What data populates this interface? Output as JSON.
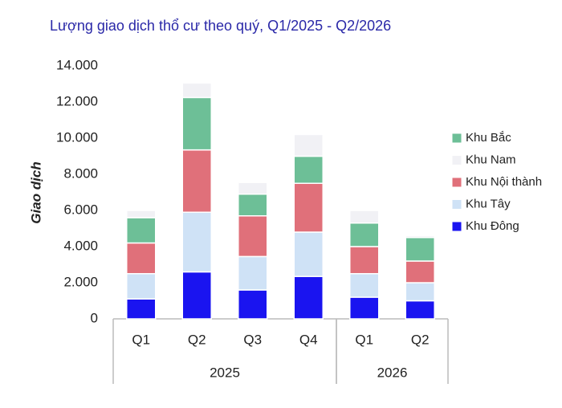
{
  "chart_data": {
    "type": "stacked_bar",
    "title": "Lượng giao dịch thổ cư theo quý, Q1/2025 - Q2/2026",
    "y_label": "Giao dịch",
    "groups": [
      {
        "name": "2025",
        "categories": [
          "Q1",
          "Q2",
          "Q3",
          "Q4"
        ]
      },
      {
        "name": "2026",
        "categories": [
          "Q1",
          "Q2"
        ]
      }
    ],
    "series": [
      {
        "name": "Khu Đông",
        "color": "#1a14f0",
        "values": [
          1100,
          2600,
          1600,
          2350,
          1200,
          1000
        ]
      },
      {
        "name": "Khu Tây",
        "color": "#cfe2f6",
        "values": [
          1400,
          3300,
          1850,
          2450,
          1300,
          1000
        ]
      },
      {
        "name": "Khu Nội thành",
        "color": "#e0707a",
        "values": [
          1700,
          3450,
          2250,
          2700,
          1500,
          1200
        ]
      },
      {
        "name": "Khu Bắc",
        "color": "#6dbf97",
        "values": [
          1400,
          2900,
          1200,
          1500,
          1300,
          1300
        ]
      },
      {
        "name": "Khu Nam",
        "color": "#f1f1f5",
        "values": [
          400,
          800,
          650,
          1200,
          700,
          100
        ]
      }
    ],
    "legend_order": [
      "Khu Bắc",
      "Khu Nam",
      "Khu Nội thành",
      "Khu Tây",
      "Khu Đông"
    ],
    "ylim": [
      0,
      14000
    ],
    "yticks": [
      0,
      {
        "value": 2000,
        "label": "2.000"
      },
      {
        "value": 4000,
        "label": "4.000"
      },
      {
        "value": 6000,
        "label": "6.000"
      },
      {
        "value": 8000,
        "label": "8.000"
      },
      {
        "value": 10000,
        "label": "10.000"
      },
      {
        "value": 12000,
        "label": "12.000"
      },
      {
        "value": 14000,
        "label": "14.000"
      }
    ],
    "grid": false,
    "legend": "right"
  }
}
